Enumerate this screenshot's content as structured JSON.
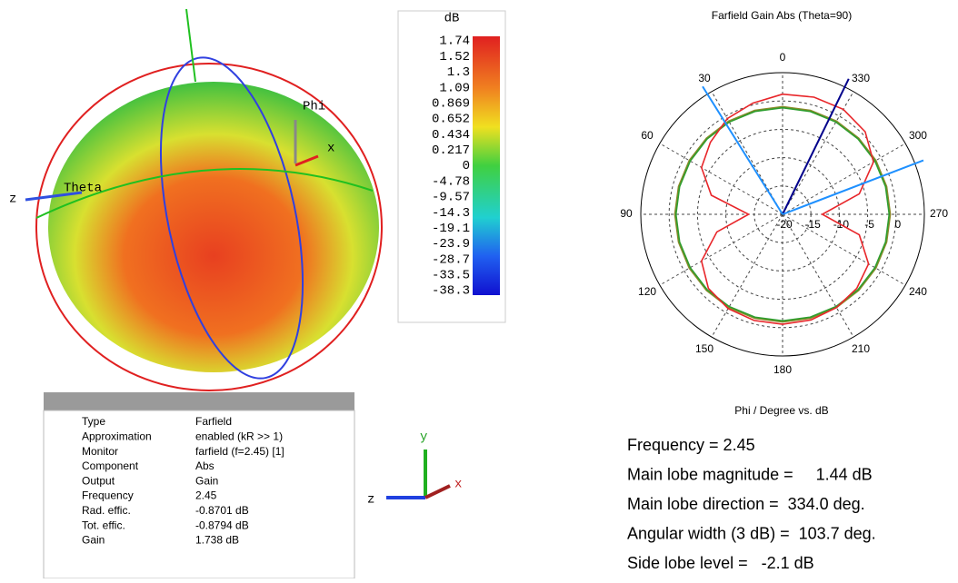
{
  "view3d": {
    "phi": "Phi",
    "theta": "Theta",
    "x": "x",
    "z": "z"
  },
  "colorbar": {
    "unit": "dB",
    "ticks": [
      "1.74",
      "1.52",
      "1.3",
      "1.09",
      "0.869",
      "0.652",
      "0.434",
      "0.217",
      "0",
      "-4.78",
      "-9.57",
      "-14.3",
      "-19.1",
      "-23.9",
      "-28.7",
      "-33.5",
      "-38.3"
    ]
  },
  "info": {
    "rows": [
      [
        "Type",
        "Farfield"
      ],
      [
        "Approximation",
        "enabled (kR >> 1)"
      ],
      [
        "Monitor",
        "farfield (f=2.45) [1]"
      ],
      [
        "Component",
        "Abs"
      ],
      [
        "Output",
        "Gain"
      ],
      [
        "Frequency",
        "2.45"
      ],
      [
        "Rad. effic.",
        "-0.8701 dB"
      ],
      [
        "Tot. effic.",
        "-0.8794 dB"
      ],
      [
        "Gain",
        "1.738 dB"
      ]
    ]
  },
  "triad": {
    "y": "y",
    "x": "x",
    "z": "z"
  },
  "polar": {
    "title": "Farfield Gain Abs (Theta=90)",
    "xlabel": "Phi / Degree vs. dB",
    "angle_ticks": [
      0,
      30,
      60,
      90,
      120,
      150,
      180,
      210,
      240,
      270,
      300,
      330
    ],
    "rlim": [
      -20,
      5
    ],
    "rticks": [
      -20,
      -15,
      -10,
      -5,
      0
    ],
    "phi": [
      0,
      15,
      30,
      45,
      60,
      75,
      90,
      105,
      120,
      135,
      150,
      165,
      180,
      195,
      210,
      225,
      240,
      255,
      270,
      285,
      300,
      315,
      330,
      345
    ],
    "series": [
      {
        "color": "#e8262a",
        "values": [
          1.2,
          0.3,
          -0.5,
          -2,
          -3.5,
          -7,
          -14,
          -8,
          -3.5,
          -1.5,
          -0.8,
          -0.6,
          -0.6,
          -0.7,
          -1,
          -1.5,
          -2.5,
          -6,
          -13,
          -6,
          -1.5,
          0.6,
          1.4,
          1.4
        ]
      },
      {
        "color": "#2e9e2e",
        "values": [
          -1.2,
          -1.2,
          -1.2,
          -1.2,
          -1.2,
          -1.2,
          -1.2,
          -1.2,
          -1.2,
          -1.2,
          -1.2,
          -1.2,
          -1.2,
          -1.2,
          -1.2,
          -1.2,
          -1.2,
          -1.2,
          -1.2,
          -1.2,
          -1.2,
          -1.2,
          -1.2,
          -1.2
        ]
      },
      {
        "color": "#8a8a2a",
        "values": [
          -1,
          -1,
          -1,
          -1,
          -1,
          -1,
          -1,
          -1,
          -1,
          -1,
          -1,
          -1,
          -1,
          -1,
          -1,
          -1,
          -1,
          -1,
          -1,
          -1,
          -1,
          -1,
          -1,
          -1
        ]
      }
    ],
    "lines": [
      {
        "angle": 334,
        "color": "#00008b"
      },
      {
        "angle": 32,
        "color": "#1e90ff"
      },
      {
        "angle": 291,
        "color": "#1e90ff"
      }
    ]
  },
  "results": [
    "Frequency = 2.45",
    "Main lobe magnitude =     1.44 dB",
    "Main lobe direction =  334.0 deg.",
    "Angular width (3 dB) =  103.7 deg.",
    "Side lobe level =   -2.1 dB"
  ]
}
